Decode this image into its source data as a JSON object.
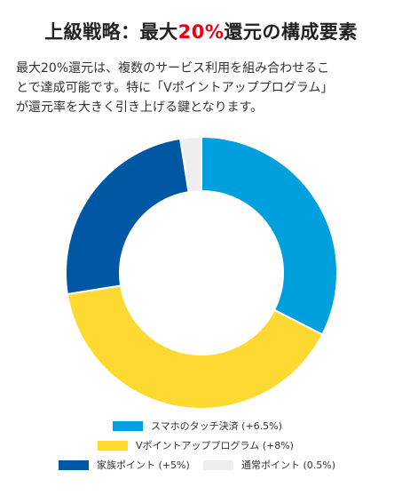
{
  "title": {
    "prefix": "上級戦略：最大",
    "highlight": "20%",
    "suffix": "還元の構成要素"
  },
  "description": [
    "最大20%還元は、複数のサービス利用を組み合わせるこ",
    "とで達成可能です。特に「Vポイントアッププログラム」",
    "が還元率を大きく引き上げる鍵となります。"
  ],
  "colors": {
    "accent": "#e60012"
  },
  "chart_data": {
    "type": "pie",
    "style": "donut",
    "categories": [
      "スマホのタッチ決済 (+6.5%)",
      "Vポイントアッププログラム (+8%)",
      "家族ポイント (+5%)",
      "通常ポイント (0.5%)"
    ],
    "values": [
      6.5,
      8,
      5,
      0.5
    ],
    "colors": [
      "#00a0de",
      "#fed932",
      "#0057a3",
      "#eeeeee"
    ],
    "legend": "bottom"
  }
}
